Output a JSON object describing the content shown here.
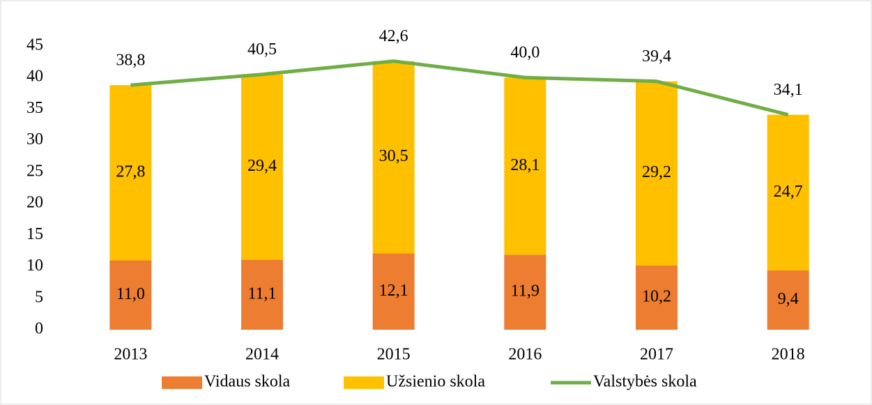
{
  "chart_data": {
    "type": "bar",
    "stacked": true,
    "categories": [
      "2013",
      "2014",
      "2015",
      "2016",
      "2017",
      "2018"
    ],
    "series": [
      {
        "name": "Vidaus skola",
        "color": "#ed7d31",
        "values": [
          11.0,
          11.1,
          12.1,
          11.9,
          10.2,
          9.4
        ],
        "value_labels": [
          "11,0",
          "11,1",
          "12,1",
          "11,9",
          "10,2",
          "9,4"
        ]
      },
      {
        "name": "Užsienio skola",
        "color": "#ffc000",
        "values": [
          27.8,
          29.4,
          30.5,
          28.1,
          29.2,
          24.7
        ],
        "value_labels": [
          "27,8",
          "29,4",
          "30,5",
          "28,1",
          "29,2",
          "24,7"
        ]
      },
      {
        "name": "Valstybės skola",
        "color": "#70ad47",
        "type": "line",
        "values": [
          38.8,
          40.5,
          42.6,
          40.0,
          39.4,
          34.1
        ],
        "value_labels": [
          "38,8",
          "40,5",
          "42,6",
          "40,0",
          "39,4",
          "34,1"
        ]
      }
    ],
    "ylim": [
      0,
      45
    ],
    "yticks": [
      0,
      5,
      10,
      15,
      20,
      25,
      30,
      35,
      40,
      45
    ],
    "grid": false,
    "legend": "bottom"
  }
}
